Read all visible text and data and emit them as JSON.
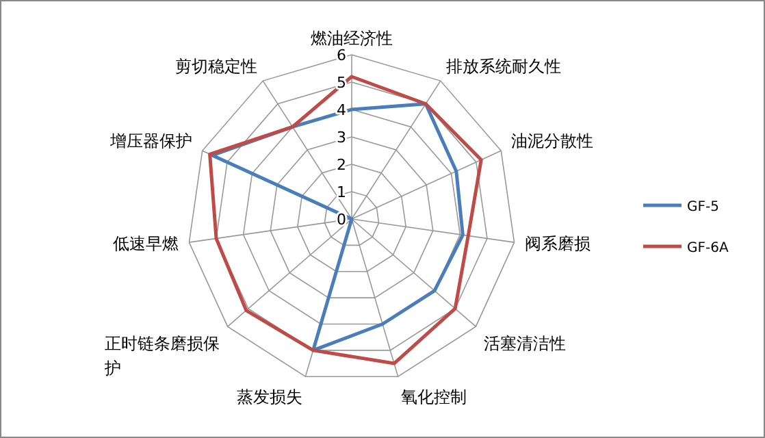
{
  "chart_data": {
    "type": "radar",
    "categories": [
      "燃油经济性",
      "排放系统耐久性",
      "油泥分散性",
      "阀系磨损",
      "活塞清洁性",
      "氧化控制",
      "蒸发损失",
      "正时链条磨损保护",
      "低速早燃",
      "增压器保护",
      "剪切稳定性"
    ],
    "series": [
      {
        "name": "GF-5",
        "color": "#4a7ebb",
        "values": [
          4,
          5,
          4.2,
          4.1,
          4,
          4,
          5,
          0,
          0,
          5.6,
          4
        ]
      },
      {
        "name": "GF-6A",
        "color": "#be4b48",
        "values": [
          5.2,
          5,
          5.2,
          4.3,
          5,
          5.5,
          5,
          5.1,
          5,
          5.7,
          4
        ]
      }
    ],
    "ylim": [
      0,
      6
    ],
    "yticks": [
      0,
      1,
      2,
      3,
      4,
      5,
      6
    ],
    "grid": true,
    "legend": "right"
  }
}
